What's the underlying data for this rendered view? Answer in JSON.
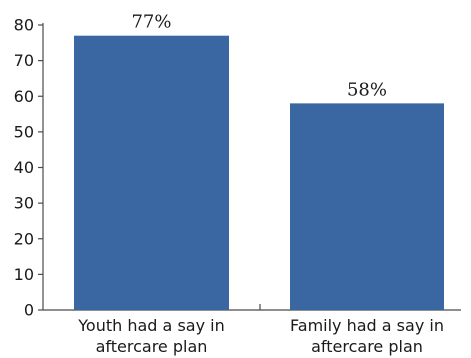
{
  "chart_data": {
    "type": "bar",
    "categories": [
      [
        "Youth had a say in",
        "aftercare plan"
      ],
      [
        "Family had a say in",
        "aftercare plan"
      ]
    ],
    "values": [
      77,
      58
    ],
    "data_labels": [
      "77%",
      "58%"
    ],
    "ylim": [
      0,
      80
    ],
    "yticks": [
      "0",
      "10",
      "20",
      "30",
      "40",
      "50",
      "60",
      "70",
      "80"
    ],
    "grid": false,
    "legend": "none",
    "colors": {
      "bar": "#3a66a1",
      "axis": "#4a4a4a"
    }
  }
}
